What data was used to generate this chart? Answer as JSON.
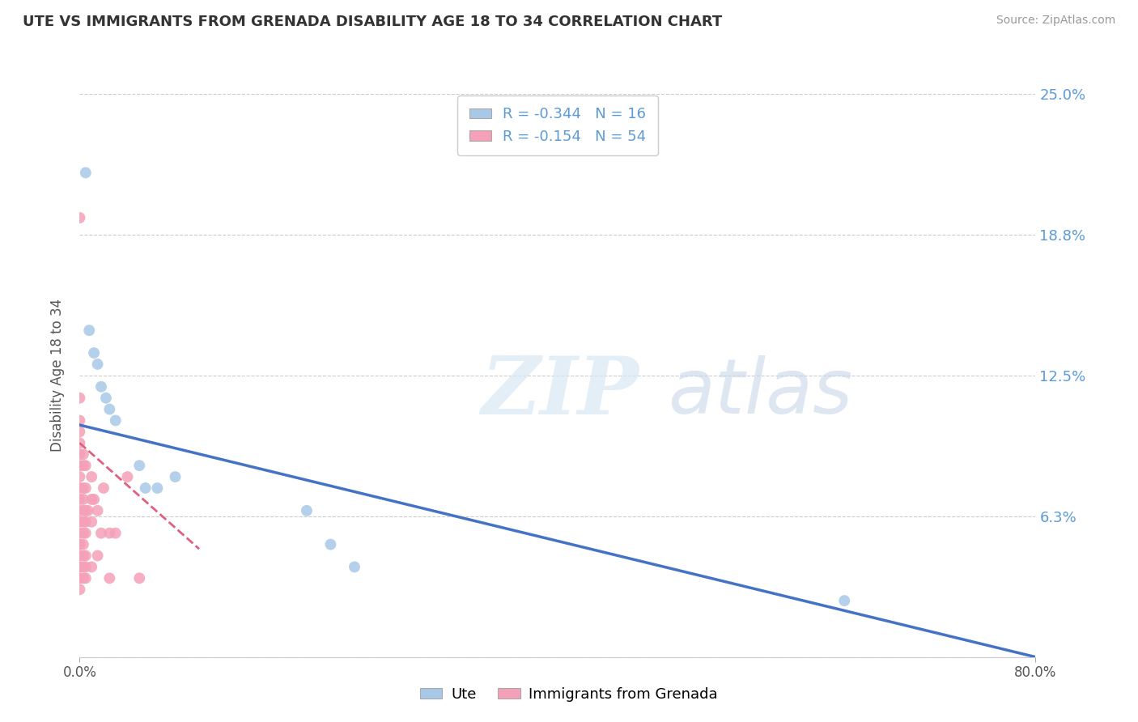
{
  "title": "UTE VS IMMIGRANTS FROM GRENADA DISABILITY AGE 18 TO 34 CORRELATION CHART",
  "source": "Source: ZipAtlas.com",
  "ylabel": "Disability Age 18 to 34",
  "legend_label1": "Ute",
  "legend_label2": "Immigrants from Grenada",
  "r1": -0.344,
  "n1": 16,
  "r2": -0.154,
  "n2": 54,
  "xmin": 0.0,
  "xmax": 0.8,
  "ymin": 0.0,
  "ymax": 0.25,
  "yticks": [
    0.0,
    0.0625,
    0.125,
    0.1875,
    0.25
  ],
  "ytick_labels": [
    "",
    "6.3%",
    "12.5%",
    "18.8%",
    "25.0%"
  ],
  "color_ute": "#a8c8e8",
  "color_grenada": "#f4a0b8",
  "trendline_color_ute": "#4472c4",
  "trendline_color_grenada": "#e06080",
  "watermark_zip": "ZIP",
  "watermark_atlas": "atlas",
  "ute_points_x": [
    0.005,
    0.008,
    0.012,
    0.015,
    0.018,
    0.022,
    0.025,
    0.03,
    0.05,
    0.055,
    0.065,
    0.08,
    0.19,
    0.21,
    0.23,
    0.64
  ],
  "ute_points_y": [
    0.215,
    0.145,
    0.135,
    0.13,
    0.12,
    0.115,
    0.11,
    0.105,
    0.085,
    0.075,
    0.075,
    0.08,
    0.065,
    0.05,
    0.04,
    0.025
  ],
  "grenada_points_x": [
    0.0,
    0.0,
    0.0,
    0.0,
    0.0,
    0.0,
    0.0,
    0.0,
    0.0,
    0.0,
    0.0,
    0.0,
    0.0,
    0.0,
    0.0,
    0.0,
    0.0,
    0.0,
    0.0,
    0.0,
    0.003,
    0.003,
    0.003,
    0.003,
    0.003,
    0.003,
    0.003,
    0.003,
    0.003,
    0.003,
    0.003,
    0.005,
    0.005,
    0.005,
    0.005,
    0.005,
    0.005,
    0.005,
    0.005,
    0.007,
    0.01,
    0.01,
    0.01,
    0.01,
    0.012,
    0.015,
    0.015,
    0.018,
    0.02,
    0.025,
    0.025,
    0.03,
    0.04,
    0.05
  ],
  "grenada_points_y": [
    0.195,
    0.115,
    0.105,
    0.1,
    0.095,
    0.09,
    0.085,
    0.08,
    0.075,
    0.07,
    0.065,
    0.06,
    0.055,
    0.05,
    0.05,
    0.045,
    0.04,
    0.04,
    0.035,
    0.03,
    0.09,
    0.085,
    0.075,
    0.07,
    0.065,
    0.06,
    0.055,
    0.05,
    0.045,
    0.04,
    0.035,
    0.085,
    0.075,
    0.065,
    0.06,
    0.055,
    0.045,
    0.04,
    0.035,
    0.065,
    0.08,
    0.07,
    0.06,
    0.04,
    0.07,
    0.065,
    0.045,
    0.055,
    0.075,
    0.055,
    0.035,
    0.055,
    0.08,
    0.035
  ],
  "ute_trendline_x0": 0.0,
  "ute_trendline_y0": 0.103,
  "ute_trendline_x1": 0.8,
  "ute_trendline_y1": 0.0,
  "gren_trendline_x0": 0.0,
  "gren_trendline_y0": 0.095,
  "gren_trendline_x1": 0.1,
  "gren_trendline_y1": 0.048
}
